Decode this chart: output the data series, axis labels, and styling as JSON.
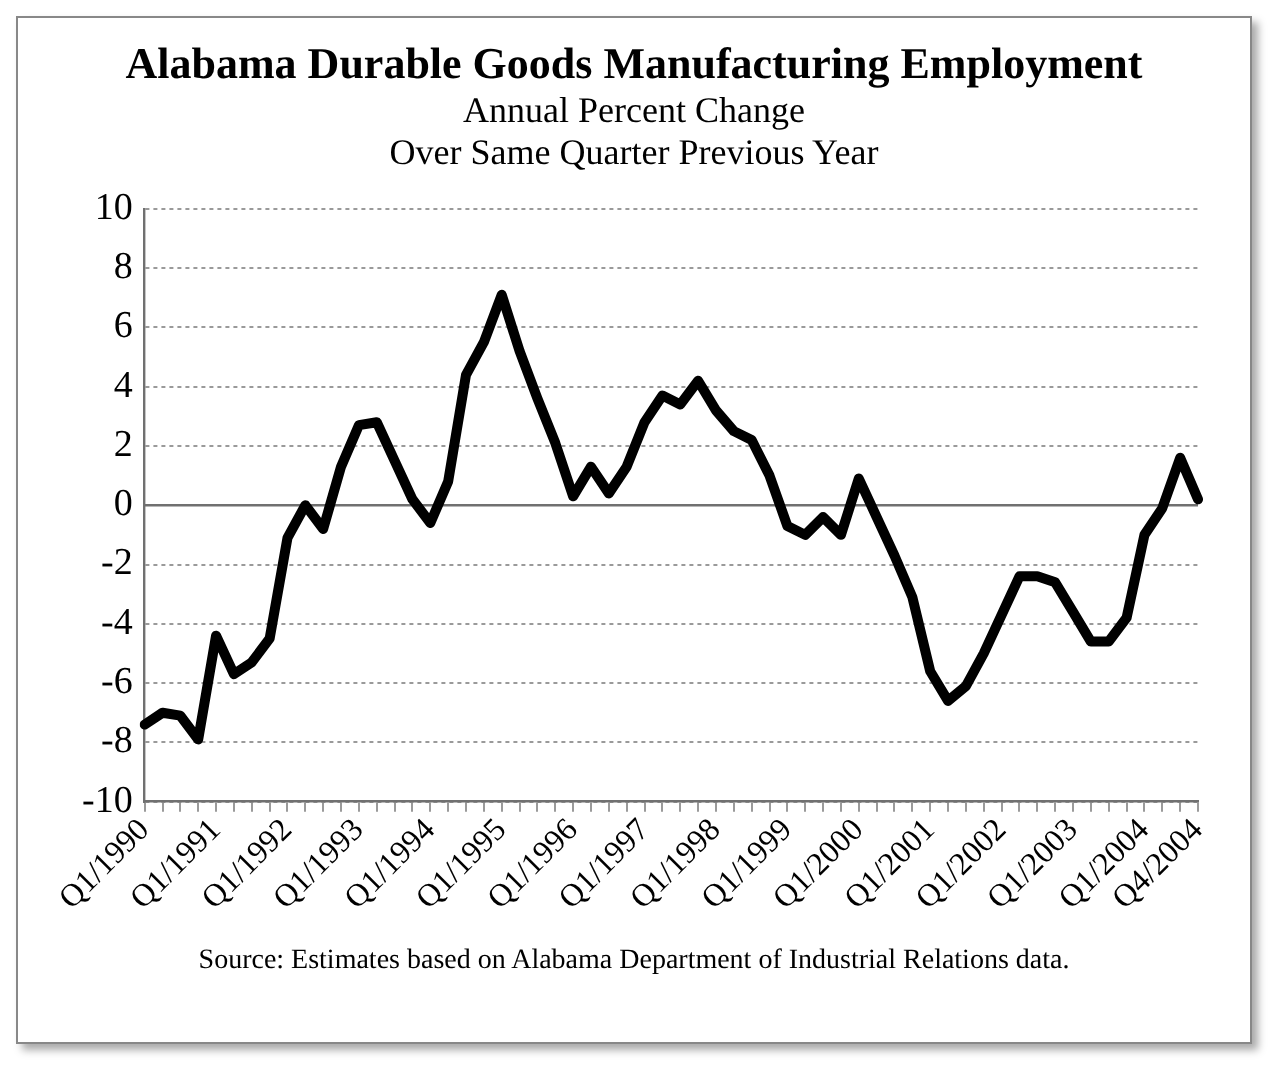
{
  "chart_data": {
    "type": "line",
    "title": "Alabama Durable Goods Manufacturing Employment",
    "subtitle": "Annual Percent Change\nOver Same Quarter Previous Year",
    "categories": [
      "Q1/1990",
      null,
      null,
      null,
      "Q1/1991",
      null,
      null,
      null,
      "Q1/1992",
      null,
      null,
      null,
      "Q1/1993",
      null,
      null,
      null,
      "Q1/1994",
      null,
      null,
      null,
      "Q1/1995",
      null,
      null,
      null,
      "Q1/1996",
      null,
      null,
      null,
      "Q1/1997",
      null,
      null,
      null,
      "Q1/1998",
      null,
      null,
      null,
      "Q1/1999",
      null,
      null,
      null,
      "Q1/2000",
      null,
      null,
      null,
      "Q1/2001",
      null,
      null,
      null,
      "Q1/2002",
      null,
      null,
      null,
      "Q1/2003",
      null,
      null,
      null,
      "Q1/2004",
      null,
      null,
      "Q4/2004"
    ],
    "series": [
      {
        "color": "#000000",
        "values": [
          -7.4,
          -7.0,
          -7.1,
          -7.9,
          -4.4,
          -5.7,
          -5.3,
          -4.5,
          -1.1,
          0.0,
          -0.8,
          1.3,
          2.7,
          2.8,
          1.5,
          0.2,
          -0.6,
          0.8,
          4.4,
          5.5,
          7.1,
          5.2,
          3.6,
          2.1,
          0.3,
          1.3,
          0.4,
          1.3,
          2.8,
          3.7,
          3.4,
          4.2,
          3.2,
          2.5,
          2.2,
          1.0,
          -0.7,
          -1.0,
          -0.4,
          -1.0,
          0.9,
          -0.4,
          -1.7,
          -3.1,
          -5.6,
          -6.6,
          -6.1,
          -5.0,
          -3.7,
          -2.4,
          -2.4,
          -2.6,
          -3.6,
          -4.6,
          -4.6,
          -3.8,
          -1.0,
          -0.1,
          1.6,
          0.2
        ]
      }
    ],
    "ylim": [
      -10,
      10
    ],
    "yticks": [
      -10,
      -8,
      -6,
      -4,
      -2,
      0,
      2,
      4,
      6,
      8,
      10
    ],
    "grid": "y",
    "legend": false,
    "marker": "none",
    "line_style": "solid",
    "ref_lines": [
      {
        "axis": "y",
        "value": 0,
        "color": "#707070"
      }
    ],
    "annotations": [
      "Source:  Estimates based on Alabama Department of Industrial Relations data."
    ]
  }
}
